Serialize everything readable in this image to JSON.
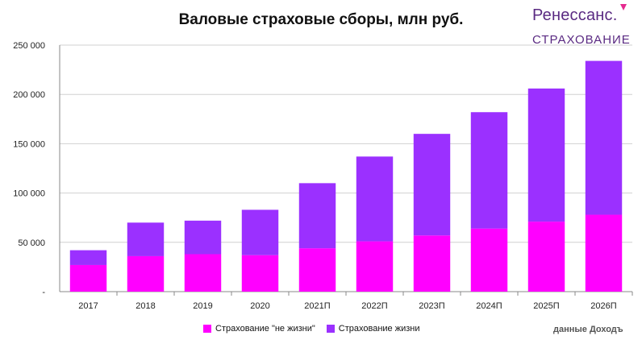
{
  "title": "Валовые страховые сборы, млн руб.",
  "logo": {
    "brand": "Ренессанс",
    "sub": "СТРАХОВАНИЕ"
  },
  "source": "данные Доходъ",
  "colors": {
    "non_life": "#ff00ff",
    "life": "#9b30ff",
    "grid": "#d0d0d0",
    "axis": "#888888"
  },
  "chart_data": {
    "type": "bar",
    "stacked": true,
    "title": "Валовые страховые сборы, млн руб.",
    "categories": [
      "2017",
      "2018",
      "2019",
      "2020",
      "2021П",
      "2022П",
      "2023П",
      "2024П",
      "2025П",
      "2026П"
    ],
    "series": [
      {
        "name": "Страхование \"не жизни\"",
        "values": [
          27000,
          36000,
          38000,
          37000,
          44000,
          51000,
          57000,
          64000,
          71000,
          78000
        ]
      },
      {
        "name": "Страхование жизни",
        "values": [
          15000,
          34000,
          34000,
          46000,
          66000,
          86000,
          103000,
          118000,
          135000,
          156000
        ]
      }
    ],
    "yticks": [
      "-",
      "50 000",
      "100 000",
      "150 000",
      "200 000",
      "250 000"
    ],
    "ylim": [
      0,
      250000
    ],
    "grid": true,
    "legend_position": "bottom"
  }
}
